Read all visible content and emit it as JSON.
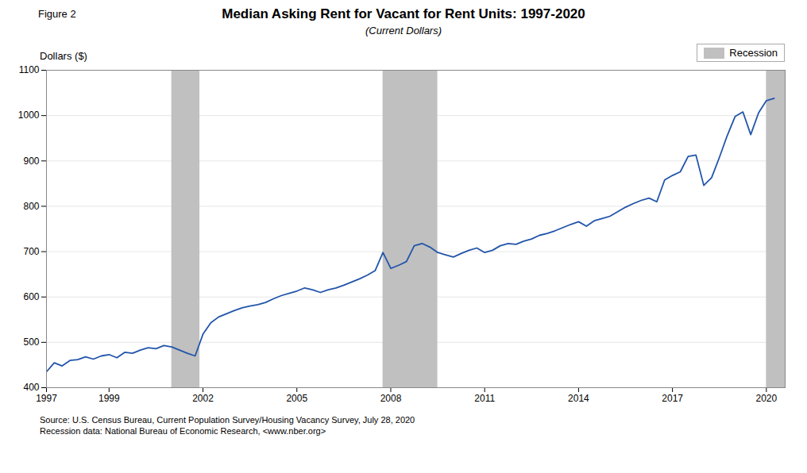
{
  "chart_data": {
    "type": "line",
    "title": "Median Asking Rent for Vacant for Rent Units: 1997-2020",
    "subtitle": "(Current Dollars)",
    "figure_label": "Figure 2",
    "y_label": "Dollars ($)",
    "source": [
      "Source: U.S. Census Bureau, Current Population Survey/Housing Vacancy Survey, July 28, 2020",
      "Recession data: National Bureau of Economic Research, <www.nber.org>"
    ],
    "x": [
      1997.0,
      1997.25,
      1997.5,
      1997.75,
      1998.0,
      1998.25,
      1998.5,
      1998.75,
      1999.0,
      1999.25,
      1999.5,
      1999.75,
      2000.0,
      2000.25,
      2000.5,
      2000.75,
      2001.0,
      2001.25,
      2001.5,
      2001.75,
      2002.0,
      2002.25,
      2002.5,
      2002.75,
      2003.0,
      2003.25,
      2003.5,
      2003.75,
      2004.0,
      2004.25,
      2004.5,
      2004.75,
      2005.0,
      2005.25,
      2005.5,
      2005.75,
      2006.0,
      2006.25,
      2006.5,
      2006.75,
      2007.0,
      2007.25,
      2007.5,
      2007.75,
      2008.0,
      2008.25,
      2008.5,
      2008.75,
      2009.0,
      2009.25,
      2009.5,
      2009.75,
      2010.0,
      2010.25,
      2010.5,
      2010.75,
      2011.0,
      2011.25,
      2011.5,
      2011.75,
      2012.0,
      2012.25,
      2012.5,
      2012.75,
      2013.0,
      2013.25,
      2013.5,
      2013.75,
      2014.0,
      2014.25,
      2014.5,
      2014.75,
      2015.0,
      2015.25,
      2015.5,
      2015.75,
      2016.0,
      2016.25,
      2016.5,
      2016.75,
      2017.0,
      2017.25,
      2017.5,
      2017.75,
      2018.0,
      2018.25,
      2018.5,
      2018.75,
      2019.0,
      2019.25,
      2019.5,
      2019.75,
      2020.0,
      2020.25
    ],
    "values": [
      435,
      455,
      448,
      460,
      462,
      468,
      463,
      470,
      473,
      466,
      478,
      476,
      483,
      488,
      486,
      493,
      490,
      483,
      476,
      470,
      518,
      543,
      556,
      563,
      570,
      576,
      580,
      583,
      588,
      596,
      603,
      608,
      613,
      620,
      616,
      610,
      616,
      620,
      626,
      633,
      640,
      648,
      658,
      698,
      663,
      670,
      678,
      713,
      718,
      710,
      698,
      693,
      688,
      696,
      703,
      708,
      698,
      703,
      713,
      718,
      716,
      723,
      728,
      736,
      740,
      746,
      753,
      760,
      766,
      756,
      768,
      773,
      778,
      788,
      798,
      806,
      813,
      818,
      810,
      858,
      868,
      876,
      910,
      913,
      846,
      863,
      908,
      956,
      998,
      1008,
      958,
      1006,
      1033,
      1038
    ],
    "color": "#2255aa",
    "shaded_periods": {
      "name": "Recession",
      "color": "#c0c0c0",
      "periods": [
        [
          2001.0,
          2001.9
        ],
        [
          2007.75,
          2009.5
        ],
        [
          2020.0,
          2020.6
        ]
      ]
    },
    "xlim": [
      1997,
      2020.6
    ],
    "xticks": [
      1997,
      1999,
      2002,
      2005,
      2008,
      2011,
      2014,
      2017,
      2020
    ],
    "ylim": [
      400,
      1100
    ],
    "yticks": [
      400,
      500,
      600,
      700,
      800,
      900,
      1000,
      1100
    ],
    "grid": true,
    "legend": "upper right"
  }
}
